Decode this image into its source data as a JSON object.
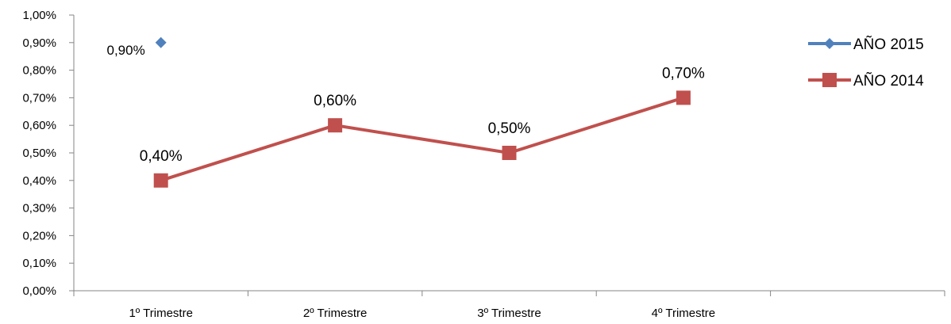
{
  "chart_data": {
    "type": "line",
    "title": "",
    "xlabel": "",
    "ylabel": "",
    "categories": [
      "1º Trimestre",
      "2º Trimestre",
      "3º Trimestre",
      "4º Trimestre",
      ""
    ],
    "y_ticks": [
      "0,00%",
      "0,10%",
      "0,20%",
      "0,30%",
      "0,40%",
      "0,50%",
      "0,60%",
      "0,70%",
      "0,80%",
      "0,90%",
      "1,00%"
    ],
    "ylim": [
      0,
      1.0
    ],
    "y_unit": "percent",
    "grid": false,
    "legend_position": "right",
    "series": [
      {
        "name": "AÑO 2015",
        "color": "#4f81bd",
        "marker": "diamond",
        "values": [
          0.9,
          null,
          null,
          null,
          null
        ],
        "labels": [
          "0,90%",
          null,
          null,
          null,
          null
        ]
      },
      {
        "name": "AÑO 2014",
        "color": "#c0504d",
        "marker": "square",
        "values": [
          0.4,
          0.6,
          0.5,
          0.7,
          null
        ],
        "labels": [
          "0,40%",
          "0,60%",
          "0,50%",
          "0,70%",
          null
        ]
      }
    ]
  }
}
